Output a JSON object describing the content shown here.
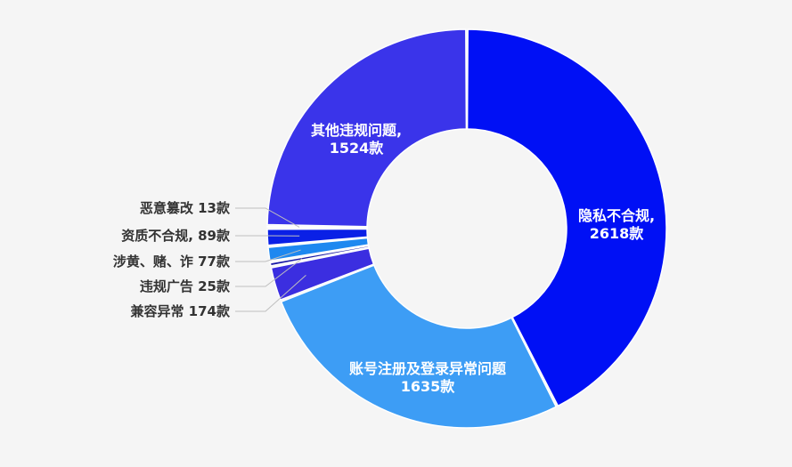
{
  "chart_data": {
    "type": "pie",
    "variant": "donut",
    "start_angle_deg": 0,
    "direction": "clockwise",
    "slices": [
      {
        "label": "隐私不合规,",
        "value_text": "2618款",
        "value": 2618,
        "color": "#0010f5",
        "label_mode": "inside"
      },
      {
        "label": "账号注册及登录异常问题",
        "value_text": "1635款",
        "value": 1635,
        "color": "#3d9df5",
        "label_mode": "inside"
      },
      {
        "label": "兼容异常",
        "value_text": "174款",
        "value": 174,
        "color": "#3b2ee0",
        "label_mode": "outside"
      },
      {
        "label": "违规广告",
        "value_text": "25款",
        "value": 25,
        "color": "#1a1aa6",
        "label_mode": "outside"
      },
      {
        "label": "涉黄、赌、诈",
        "value_text": "77款",
        "value": 77,
        "color": "#1e88f0",
        "label_mode": "outside"
      },
      {
        "label": "资质不合规,",
        "value_text": "89款",
        "value": 89,
        "color": "#0a20e6",
        "label_mode": "outside"
      },
      {
        "label": "恶意篡改",
        "value_text": "13款",
        "value": 13,
        "color": "#5a7cf2",
        "label_mode": "outside"
      },
      {
        "label": "其他违规问题,",
        "value_text": "1524款",
        "value": 1524,
        "color": "#3a34ea",
        "label_mode": "inside"
      }
    ]
  }
}
